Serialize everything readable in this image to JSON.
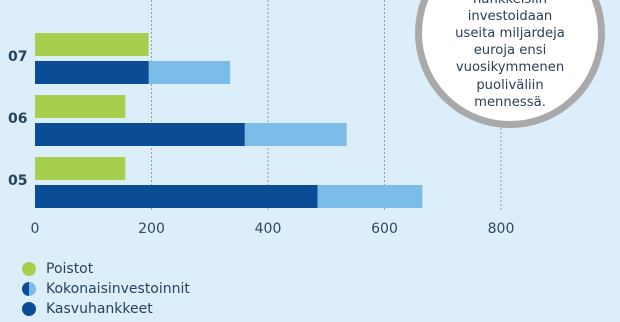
{
  "chart_data": {
    "type": "bar",
    "orientation": "horizontal",
    "categories": [
      "07",
      "06",
      "05"
    ],
    "series": [
      {
        "name": "Poistot",
        "values": [
          195,
          155,
          155
        ],
        "color": "#a6cf4e"
      },
      {
        "name": "Kasvuhankkeet",
        "values": [
          195,
          360,
          485
        ],
        "color": "#0a4d96"
      },
      {
        "name": "Kokonaisinvestoinnit",
        "values": [
          335,
          535,
          665
        ],
        "color": "#7bbde8"
      }
    ],
    "xlim": [
      0,
      800
    ],
    "xticks": [
      "0",
      "200",
      "400",
      "600",
      "800"
    ],
    "grid": true,
    "legend_position": "bottom-left"
  },
  "legend": [
    {
      "label": "Poistot",
      "icon": "green-dot-icon"
    },
    {
      "label": "Kokonaisinvestoinnit",
      "icon": "half-circle-icon"
    },
    {
      "label": "Kasvuhankkeet",
      "icon": "blue-dot-icon"
    }
  ],
  "callout": {
    "text": "Kasvu-\nhankkeisiin\ninvestoidaan\nuseita miljardeja\neuroja ensi\nvuosikymmenen\npuoliväliin\nmennessä."
  }
}
